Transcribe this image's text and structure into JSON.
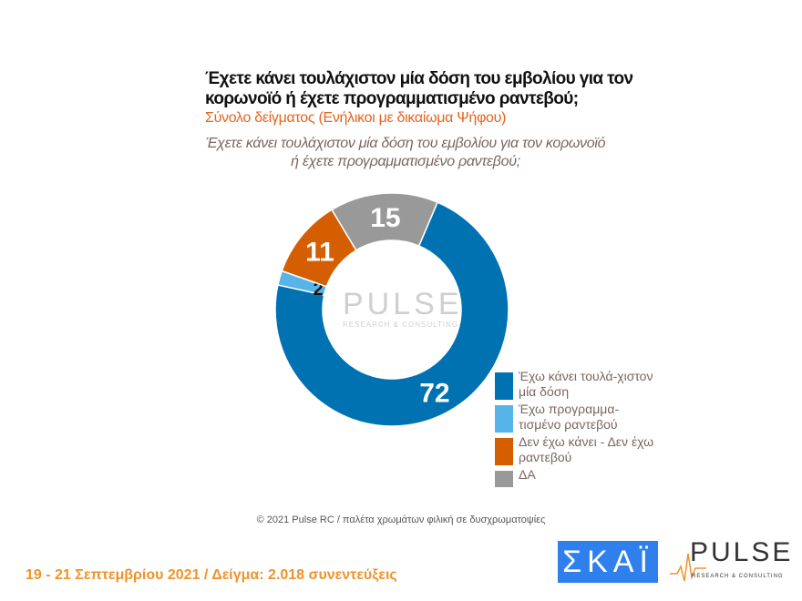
{
  "title": "Έχετε κάνει τουλάχιστον μία δόση του εμβολίου για τον κορωνοϊό ή έχετε προγραμματισμένο ραντεβού;",
  "subtitle": "Σύνολο δείγματος (Ενήλικοι με δικαίωμα Ψήφου)",
  "footer": "© 2021 Pulse RC   /   παλέτα χρωμάτων φιλική σε δυσχρωματοψίες",
  "dates": "19 - 21 Σεπτεμβρίου 2021  /  Δείγμα:  2.018 συνεντεύξεις",
  "logos": {
    "skai": "ΣΚΑΪ",
    "pulse": "PULSE",
    "pulse_sub": "RESEARCH & CONSULTING"
  },
  "chart_data": {
    "type": "pie",
    "donut": true,
    "title": "Έχετε κάνει τουλάχιστον μία δόση του εμβολίου για τον κορωνοϊό ή έχετε προγραμματισμένο ραντεβού;",
    "categories": [
      "Έχω κάνει τουλά-χιστον μία δόση",
      "Έχω προγραμμα-τισμένο ραντεβού",
      "Δεν έχω κάνει - Δεν έχω ραντεβού",
      "ΔΑ"
    ],
    "values": [
      72,
      2,
      11,
      15
    ],
    "labels": [
      "72",
      "2",
      "11",
      "15"
    ],
    "colors": [
      "#0072b2",
      "#56b4e9",
      "#d55e00",
      "#999999"
    ],
    "legend": "right"
  }
}
